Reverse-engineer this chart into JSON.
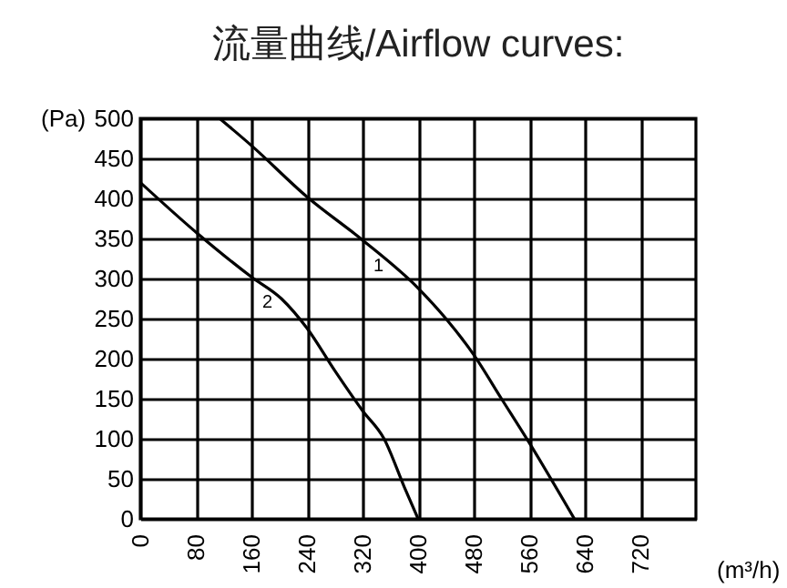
{
  "chart_data": {
    "type": "line",
    "title": "流量曲线/Airflow curves:",
    "xlabel": "(m³/h)",
    "ylabel": "(Pa)",
    "xlim": [
      0,
      800
    ],
    "xticks": [
      0,
      80,
      160,
      240,
      320,
      400,
      480,
      560,
      640,
      720
    ],
    "ylim": [
      0,
      500
    ],
    "yticks": [
      0,
      50,
      100,
      150,
      200,
      250,
      300,
      350,
      400,
      450,
      500
    ],
    "grid": true,
    "marker": "none",
    "line_style": "solid",
    "legend": false,
    "series": [
      {
        "name": "1",
        "color": "#000000",
        "x": [
          114,
          160,
          240,
          320,
          400,
          440,
          480,
          520,
          560,
          625
        ],
        "values": [
          500,
          466,
          402,
          348,
          288,
          250,
          205,
          150,
          95,
          0
        ]
      },
      {
        "name": "2",
        "color": "#000000",
        "x": [
          0,
          80,
          160,
          203,
          240,
          280,
          320,
          351,
          380,
          400
        ],
        "values": [
          420,
          358,
          302,
          275,
          238,
          185,
          135,
          100,
          40,
          0
        ]
      }
    ]
  }
}
